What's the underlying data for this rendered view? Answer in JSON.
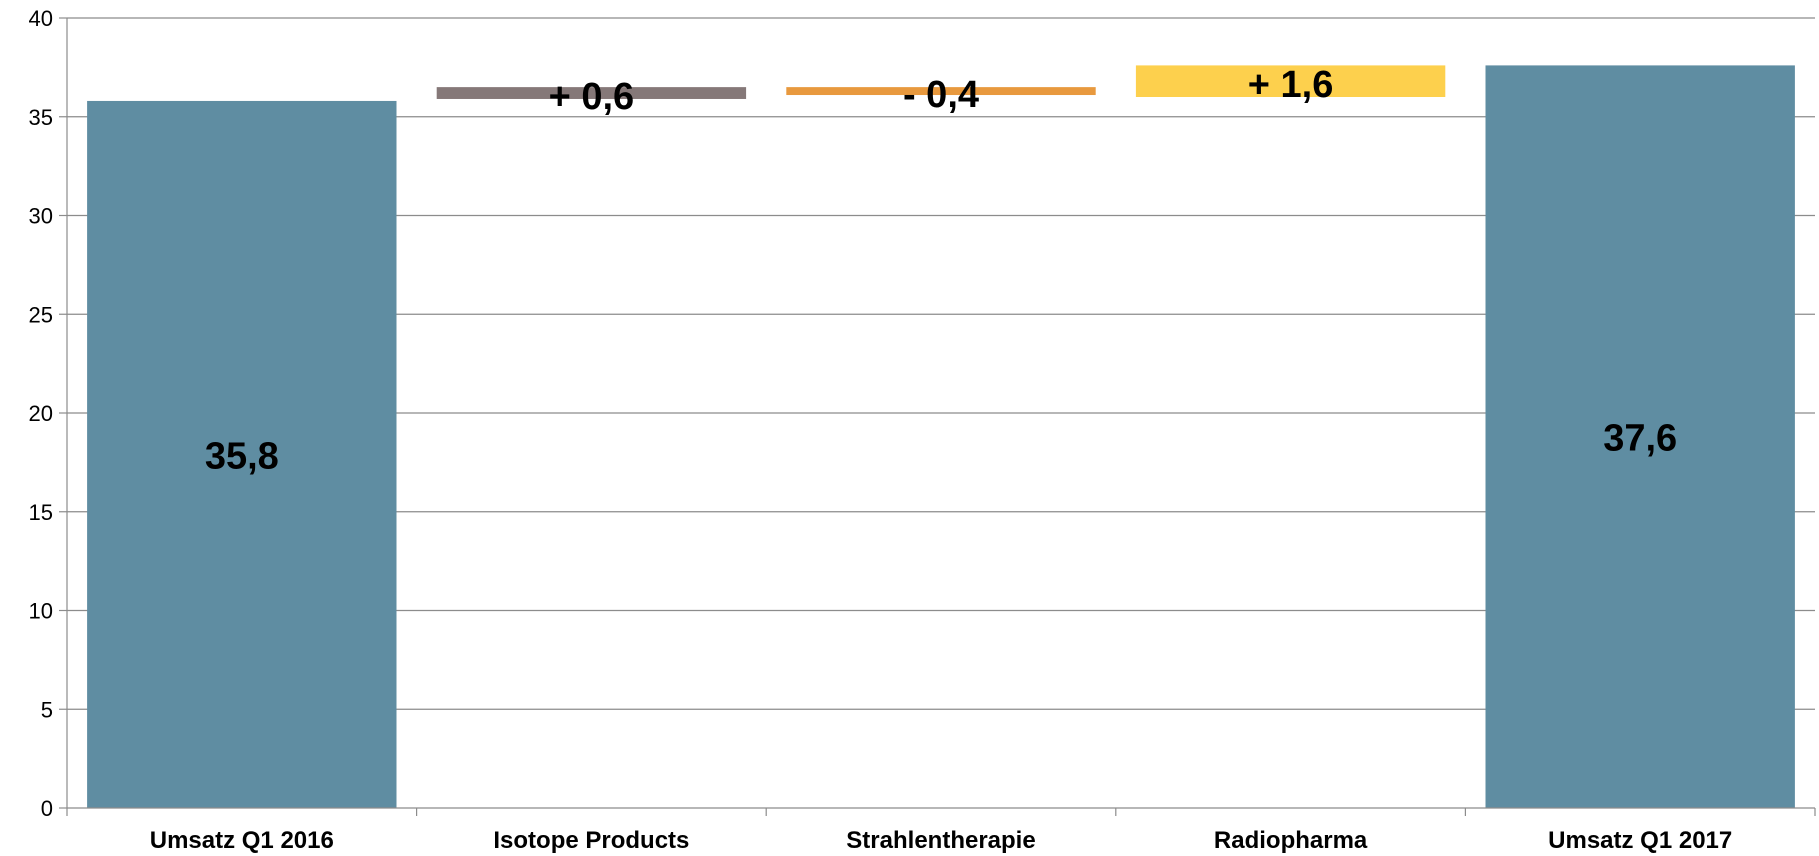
{
  "chart_data": {
    "type": "bar",
    "subtype": "waterfall",
    "categories": [
      "Umsatz Q1 2016",
      "Isotope Products",
      "Strahlentherapie",
      "Radiopharma",
      "Umsatz Q1 2017"
    ],
    "bars": [
      {
        "category": "Umsatz Q1 2016",
        "kind": "total",
        "base": 0,
        "top": 35.8,
        "label": "35,8",
        "color": "#5f8da2"
      },
      {
        "category": "Isotope Products",
        "kind": "delta",
        "base": 35.9,
        "top": 36.5,
        "label": "+ 0,6",
        "color": "#857878"
      },
      {
        "category": "Strahlentherapie",
        "kind": "delta",
        "base": 36.1,
        "top": 36.5,
        "label": "- 0,4",
        "color": "#e8993e"
      },
      {
        "category": "Radiopharma",
        "kind": "delta",
        "base": 36.0,
        "top": 37.6,
        "label": "+ 1,6",
        "color": "#fdd04d"
      },
      {
        "category": "Umsatz Q1 2017",
        "kind": "total",
        "base": 0,
        "top": 37.6,
        "label": "37,6",
        "color": "#5f8da2"
      }
    ],
    "ylim": [
      0,
      40
    ],
    "yticks": [
      0,
      5,
      10,
      15,
      20,
      25,
      30,
      35,
      40
    ],
    "grid": true,
    "title": "",
    "xlabel": "",
    "ylabel": ""
  }
}
